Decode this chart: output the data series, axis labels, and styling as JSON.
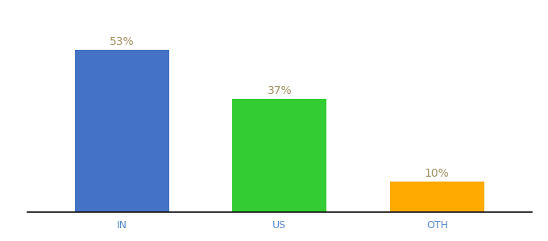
{
  "categories": [
    "IN",
    "US",
    "OTH"
  ],
  "values": [
    53,
    37,
    10
  ],
  "bar_colors": [
    "#4472c4",
    "#33cc33",
    "#ffaa00"
  ],
  "labels": [
    "53%",
    "37%",
    "10%"
  ],
  "ylim": [
    0,
    63
  ],
  "background_color": "#ffffff",
  "label_color": "#a09060",
  "label_fontsize": 10,
  "tick_fontsize": 9,
  "tick_color": "#5588cc",
  "bar_width": 0.6,
  "figsize": [
    6.8,
    3.0
  ],
  "dpi": 100
}
